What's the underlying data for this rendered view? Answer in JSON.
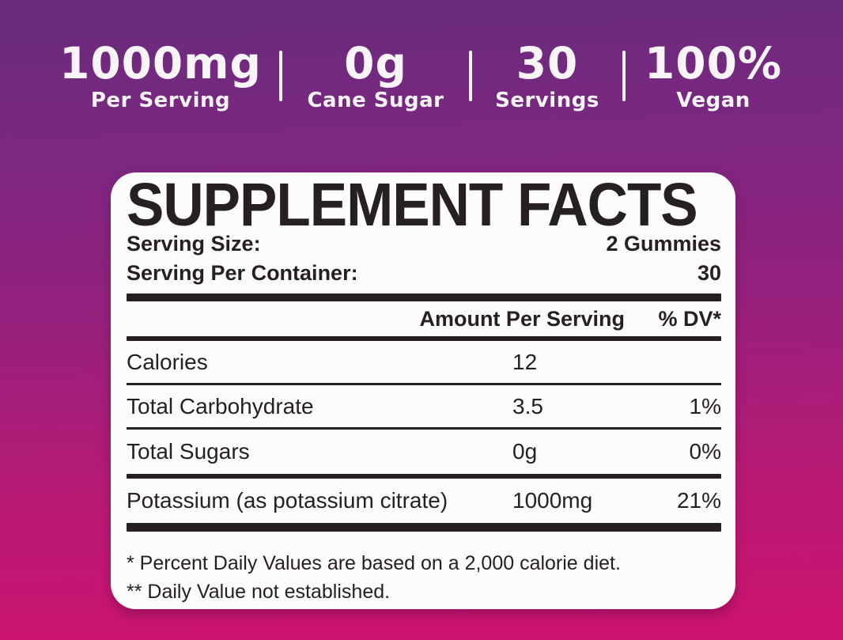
{
  "colors": {
    "bg-top": "#682c7b",
    "bg-mid": "#98207d",
    "bg-bottom": "#ce1370",
    "ink": "#272023",
    "card": "#fdfcfd",
    "stat-text": "#f8f4f8"
  },
  "header_stats": [
    {
      "value": "1000mg",
      "label": "Per Serving"
    },
    {
      "value": "0g",
      "label": "Cane Sugar"
    },
    {
      "value": "30",
      "label": "Servings"
    },
    {
      "value": "100%",
      "label": "Vegan"
    }
  ],
  "panel": {
    "title": "SUPPLEMENT FACTS",
    "serving_size_label": "Serving Size:",
    "serving_size_value": "2 Gummies",
    "servings_per_container_label": "Serving Per Container:",
    "servings_per_container_value": "30",
    "columns": {
      "amount": "Amount Per Serving",
      "dv": "% DV*"
    },
    "rows": [
      {
        "name": "Calories",
        "amount": "12",
        "dv": ""
      },
      {
        "name": "Total Carbohydrate",
        "amount": "3.5",
        "dv": "1%"
      },
      {
        "name": "Total Sugars",
        "amount": "0g",
        "dv": "0%"
      },
      {
        "name": "Potassium (as potassium citrate)",
        "amount": "1000mg",
        "dv": "21%"
      }
    ],
    "footnotes": [
      "* Percent Daily Values are based on a 2,000 calorie diet.",
      "** Daily Value not established."
    ]
  }
}
